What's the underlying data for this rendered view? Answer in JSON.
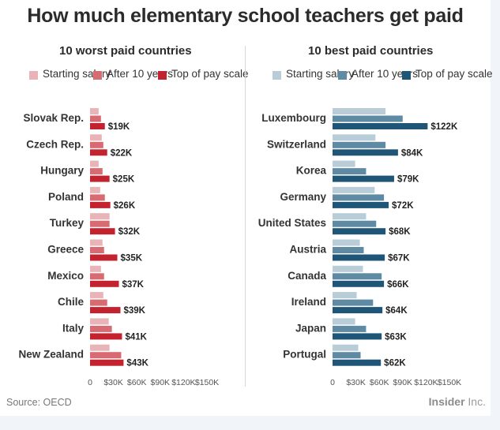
{
  "title": "How much elementary school teachers get paid",
  "source": "Source: OECD",
  "brand": {
    "bold": "Insider",
    "rest": " Inc."
  },
  "chart_data": [
    {
      "type": "bar",
      "orientation": "horizontal",
      "title": "10 worst paid countries",
      "categories": [
        "Slovak Rep.",
        "Czech Rep.",
        "Hungary",
        "Poland",
        "Turkey",
        "Greece",
        "Mexico",
        "Chile",
        "Italy",
        "New Zealand"
      ],
      "series": [
        {
          "name": "Starting salary",
          "color": "#e8b4b8",
          "values": [
            11000,
            15000,
            11000,
            13000,
            25000,
            16000,
            14000,
            17000,
            24000,
            25000
          ]
        },
        {
          "name": "After 10 years",
          "color": "#d86a72",
          "values": [
            14000,
            17000,
            16000,
            19000,
            25000,
            18000,
            18000,
            22000,
            28000,
            40000
          ]
        },
        {
          "name": "Top of pay scale",
          "color": "#c3232e",
          "values": [
            19000,
            22000,
            25000,
            26000,
            32000,
            35000,
            37000,
            39000,
            41000,
            43000
          ]
        }
      ],
      "value_labels": [
        "$19K",
        "$22K",
        "$25K",
        "$26K",
        "$32K",
        "$35K",
        "$37K",
        "$39K",
        "$41K",
        "$43K"
      ],
      "xlim": [
        0,
        150000
      ],
      "ticks": [
        "0",
        "$30K",
        "$60K",
        "$90K",
        "$120K",
        "$150K"
      ],
      "grid": false,
      "legend": "top"
    },
    {
      "type": "bar",
      "orientation": "horizontal",
      "title": "10 best paid countries",
      "categories": [
        "Luxembourg",
        "Switzerland",
        "Korea",
        "Germany",
        "United States",
        "Austria",
        "Canada",
        "Ireland",
        "Japan",
        "Portugal"
      ],
      "series": [
        {
          "name": "Starting salary",
          "color": "#b8cdd8",
          "values": [
            68000,
            55000,
            29000,
            54000,
            43000,
            35000,
            39000,
            31000,
            29000,
            33000
          ]
        },
        {
          "name": "After 10 years",
          "color": "#5e8aa3",
          "values": [
            90000,
            68000,
            43000,
            66000,
            56000,
            40000,
            63000,
            52000,
            43000,
            36000
          ]
        },
        {
          "name": "Top of pay scale",
          "color": "#1f5678",
          "values": [
            122000,
            84000,
            79000,
            72000,
            68000,
            67000,
            66000,
            64000,
            63000,
            62000
          ]
        }
      ],
      "value_labels": [
        "$122K",
        "$84K",
        "$79K",
        "$72K",
        "$68K",
        "$67K",
        "$66K",
        "$64K",
        "$63K",
        "$62K"
      ],
      "xlim": [
        0,
        150000
      ],
      "ticks": [
        "0",
        "$30K",
        "$60K",
        "$90K",
        "$120K",
        "$150K"
      ],
      "grid": false,
      "legend": "top"
    }
  ]
}
